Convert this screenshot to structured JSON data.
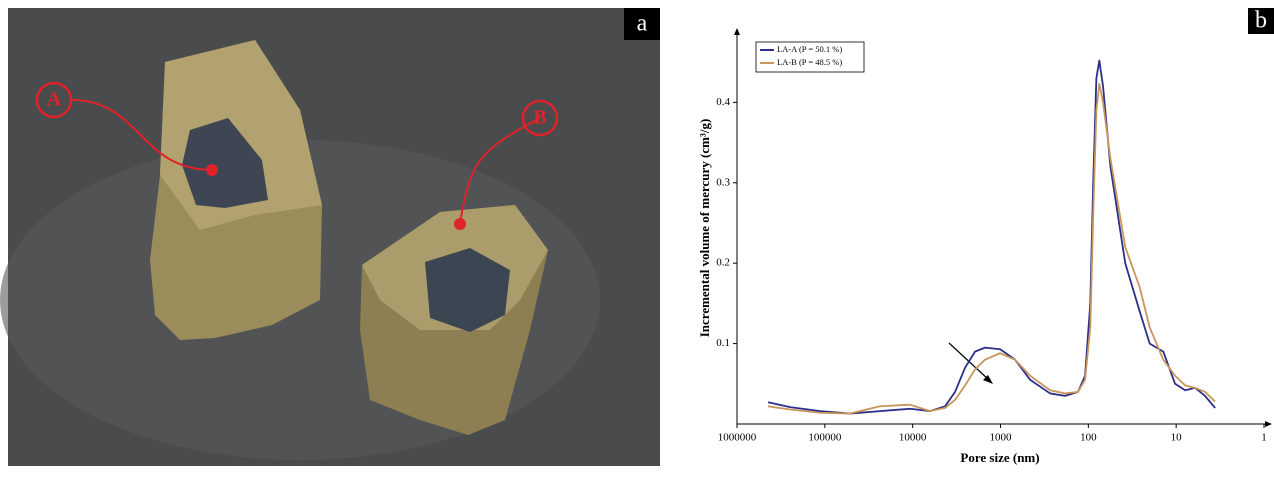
{
  "photo": {
    "panel_label": "a",
    "markers": [
      "A",
      "B"
    ]
  },
  "chart_data": {
    "type": "line",
    "panel_label": "b",
    "x_label": "Pore size (nm)",
    "y_label": "Incremental volume of mercury (cm³/g)",
    "xscale": "log",
    "xlim": [
      1000000,
      1
    ],
    "xticks": [
      1000000,
      100000,
      10000,
      1000,
      100,
      10,
      1
    ],
    "ylim": [
      0,
      0.49
    ],
    "yticks": [
      0.1,
      0.2,
      0.3,
      0.4
    ],
    "grid": false,
    "legend": "upper left",
    "x": [
      443000,
      249000,
      113000,
      51600,
      23500,
      10700,
      6340,
      4280,
      3290,
      2530,
      1950,
      1500,
      1010,
      682,
      460,
      272,
      184,
      131,
      109,
      95,
      88,
      81,
      75,
      68,
      56,
      38,
      26,
      20,
      14,
      10.3,
      7.9,
      6.1,
      4.7,
      3.6
    ],
    "series": [
      {
        "name": "LA-A  (P = 50.1 %)",
        "color": "#2b2f8a",
        "values": [
          0.027,
          0.021,
          0.016,
          0.013,
          0.016,
          0.019,
          0.016,
          0.022,
          0.04,
          0.07,
          0.09,
          0.095,
          0.093,
          0.08,
          0.055,
          0.038,
          0.035,
          0.04,
          0.06,
          0.15,
          0.3,
          0.43,
          0.452,
          0.42,
          0.32,
          0.2,
          0.14,
          0.1,
          0.09,
          0.05,
          0.042,
          0.045,
          0.035,
          0.02
        ]
      },
      {
        "name": "LA-B  (P = 48.5 %)",
        "color": "#c8965a",
        "values": [
          0.022,
          0.018,
          0.014,
          0.013,
          0.022,
          0.024,
          0.016,
          0.02,
          0.03,
          0.048,
          0.068,
          0.08,
          0.088,
          0.08,
          0.06,
          0.042,
          0.038,
          0.04,
          0.055,
          0.12,
          0.26,
          0.39,
          0.423,
          0.4,
          0.33,
          0.22,
          0.17,
          0.12,
          0.08,
          0.06,
          0.048,
          0.045,
          0.04,
          0.028
        ]
      }
    ]
  }
}
